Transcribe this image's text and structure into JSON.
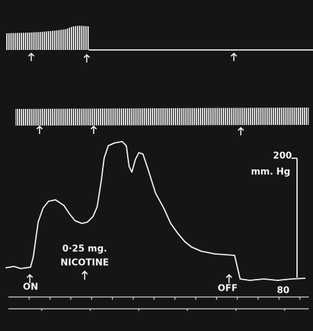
{
  "labels": {
    "on": "ON",
    "dose": "0·25 mg.",
    "drug": "NICOTINE",
    "off": "OFF",
    "scale_top": "200",
    "scale_unit": "mm. Hg",
    "scale_bottom": "80"
  }
}
